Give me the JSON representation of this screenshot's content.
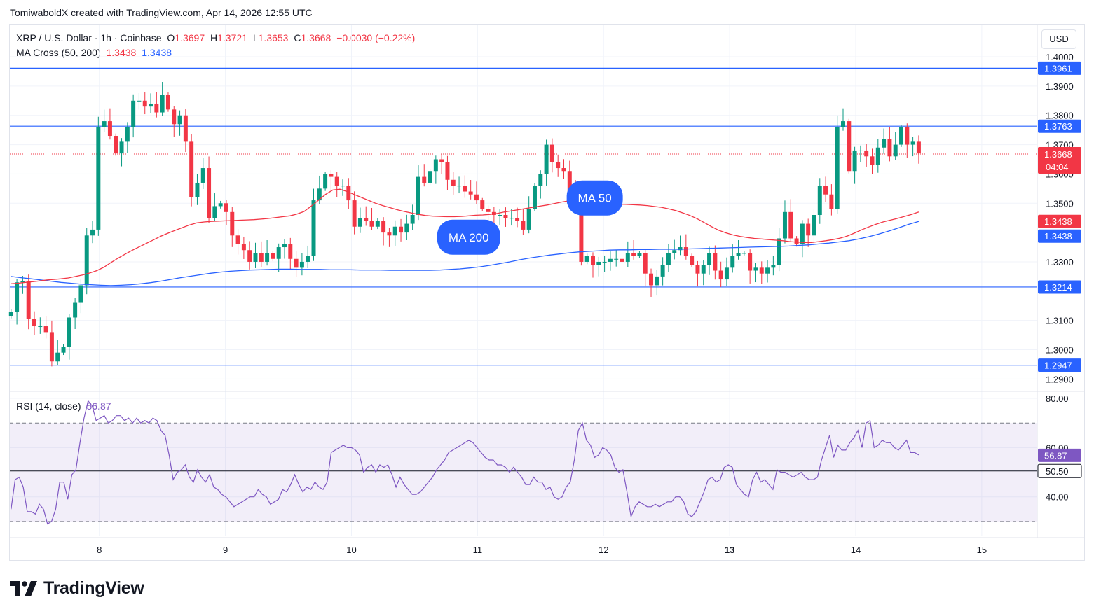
{
  "header": {
    "credit": "TomiwaboldX created with TradingView.com, Apr 14, 2026 12:55 UTC"
  },
  "legend": {
    "symbol": "XRP / U.S. Dollar · 1h · Coinbase",
    "o_label": "O",
    "o_value": "1.3697",
    "h_label": "H",
    "h_value": "1.3721",
    "l_label": "L",
    "l_value": "1.3653",
    "c_label": "C",
    "c_value": "1.3668",
    "change": "−0.0030 (−0.22%)",
    "ma_label": "MA Cross (50, 200)",
    "ma50_value": "1.3438",
    "ma200_value": "1.3438",
    "rsi_label": "RSI (14, close)",
    "rsi_value": "56.87"
  },
  "currency_button": "USD",
  "logo_text": "TradingView",
  "colors": {
    "bull": "#089981",
    "bear": "#f23645",
    "ma50": "#f23645",
    "ma200": "#2962ff",
    "hline": "#2962ff",
    "rsi": "#7e57c2",
    "rsi_band": "#7e57c2"
  },
  "chart_data": [
    {
      "type": "candlestick",
      "title": "XRP / U.S. Dollar · 1h · Coinbase",
      "ylim": [
        1.2865,
        1.4012
      ],
      "y_ticks": [
        "1.2900",
        "1.3000",
        "1.3100",
        "1.3300",
        "1.3500",
        "1.3600",
        "1.3700",
        "1.3800",
        "1.3900",
        "1.4000"
      ],
      "x_ticks": [
        {
          "label": "8",
          "day": 8
        },
        {
          "label": "9",
          "day": 9
        },
        {
          "label": "10",
          "day": 10
        },
        {
          "label": "11",
          "day": 11
        },
        {
          "label": "12",
          "day": 12
        },
        {
          "label": "13",
          "day": 13,
          "bold": true
        },
        {
          "label": "14",
          "day": 14
        },
        {
          "label": "15",
          "day": 15
        }
      ],
      "x_range_days": [
        7.29,
        15.44
      ],
      "first_candle_day": 7.3,
      "last_candle_day": 14.5,
      "closes": [
        1.313,
        1.323,
        1.3235,
        1.3105,
        1.308,
        1.308,
        1.306,
        1.296,
        1.299,
        1.301,
        1.311,
        1.316,
        1.322,
        1.339,
        1.341,
        1.376,
        1.378,
        1.373,
        1.367,
        1.371,
        1.376,
        1.385,
        1.385,
        1.383,
        1.384,
        1.381,
        1.387,
        1.382,
        1.377,
        1.38,
        1.371,
        1.352,
        1.357,
        1.362,
        1.345,
        1.349,
        1.35,
        1.347,
        1.339,
        1.336,
        1.334,
        1.33,
        1.333,
        1.33,
        1.333,
        1.331,
        1.335,
        1.336,
        1.331,
        1.328,
        1.33,
        1.332,
        1.351,
        1.355,
        1.36,
        1.359,
        1.356,
        1.356,
        1.351,
        1.342,
        1.345,
        1.344,
        1.342,
        1.344,
        1.34,
        1.339,
        1.342,
        1.34,
        1.343,
        1.346,
        1.359,
        1.357,
        1.361,
        1.365,
        1.364,
        1.358,
        1.356,
        1.356,
        1.354,
        1.353,
        1.351,
        1.348,
        1.347,
        1.346,
        1.346,
        1.345,
        1.345,
        1.344,
        1.341,
        1.348,
        1.356,
        1.36,
        1.37,
        1.364,
        1.362,
        1.361,
        1.354,
        1.352,
        1.33,
        1.332,
        1.329,
        1.33,
        1.33,
        1.331,
        1.331,
        1.33,
        1.333,
        1.332,
        1.333,
        1.326,
        1.322,
        1.325,
        1.329,
        1.333,
        1.334,
        1.335,
        1.332,
        1.329,
        1.326,
        1.329,
        1.333,
        1.327,
        1.324,
        1.328,
        1.332,
        1.333,
        1.333,
        1.327,
        1.328,
        1.326,
        1.328,
        1.329,
        1.338,
        1.347,
        1.338,
        1.336,
        1.343,
        1.339,
        1.346,
        1.356,
        1.353,
        1.348,
        1.376,
        1.378,
        1.361,
        1.368,
        1.368,
        1.366,
        1.363,
        1.369,
        1.372,
        1.366,
        1.37,
        1.376,
        1.37,
        1.371,
        1.367
      ],
      "ma50": [
        1.3225,
        1.3227,
        1.323,
        1.3232,
        1.3235,
        1.3238,
        1.324,
        1.3242,
        1.3245,
        1.325,
        1.3255,
        1.3262,
        1.327,
        1.3282,
        1.3298,
        1.3313,
        1.3327,
        1.334,
        1.3352,
        1.3364,
        1.3376,
        1.3388,
        1.3398,
        1.3408,
        1.3417,
        1.3426,
        1.3433,
        1.3436,
        1.3438,
        1.3439,
        1.344,
        1.3441,
        1.3442,
        1.3443,
        1.3444,
        1.3446,
        1.3448,
        1.3451,
        1.3454,
        1.3457,
        1.3463,
        1.3472,
        1.349,
        1.351,
        1.353,
        1.3545,
        1.3548,
        1.354,
        1.353,
        1.352,
        1.351,
        1.35,
        1.3492,
        1.3485,
        1.3478,
        1.3472,
        1.3467,
        1.3462,
        1.3458,
        1.3456,
        1.3455,
        1.3454,
        1.3454,
        1.3455,
        1.3457,
        1.3459,
        1.346,
        1.3462,
        1.3465,
        1.347,
        1.3474,
        1.3478,
        1.3482,
        1.3486,
        1.349,
        1.3494,
        1.3499,
        1.3504,
        1.3508,
        1.351,
        1.3511,
        1.351,
        1.3508,
        1.3504,
        1.35,
        1.3497,
        1.3496,
        1.3495,
        1.3494,
        1.3492,
        1.3489,
        1.3486,
        1.3481,
        1.3475,
        1.3467,
        1.3458,
        1.3447,
        1.3434,
        1.342,
        1.3408,
        1.3399,
        1.3392,
        1.3387,
        1.3383,
        1.338,
        1.3378,
        1.3376,
        1.3374,
        1.3372,
        1.3369,
        1.3367,
        1.3366,
        1.3366,
        1.3369,
        1.3372,
        1.3376,
        1.3381,
        1.3388,
        1.3398,
        1.3409,
        1.3419,
        1.3428,
        1.3436,
        1.3442,
        1.3448,
        1.3455,
        1.3462,
        1.347
      ],
      "ma200": [
        1.325,
        1.3246,
        1.3242,
        1.3238,
        1.3234,
        1.323,
        1.3227,
        1.3224,
        1.3222,
        1.322,
        1.3219,
        1.322,
        1.3222,
        1.3225,
        1.3229,
        1.3234,
        1.324,
        1.3246,
        1.3251,
        1.3256,
        1.3261,
        1.3265,
        1.3268,
        1.327,
        1.3272,
        1.3273,
        1.3274,
        1.3275,
        1.3275,
        1.3274,
        1.3274,
        1.3274,
        1.3273,
        1.3273,
        1.3273,
        1.3272,
        1.3272,
        1.3272,
        1.3271,
        1.3271,
        1.3271,
        1.3271,
        1.3271,
        1.3272,
        1.3274,
        1.3276,
        1.3279,
        1.3283,
        1.3288,
        1.3294,
        1.33,
        1.3307,
        1.3313,
        1.3318,
        1.3323,
        1.3327,
        1.3331,
        1.3334,
        1.3336,
        1.3338,
        1.334,
        1.3341,
        1.3341,
        1.3342,
        1.3342,
        1.3343,
        1.3343,
        1.3343,
        1.3344,
        1.3345,
        1.3346,
        1.3347,
        1.3348,
        1.3349,
        1.335,
        1.3351,
        1.3352,
        1.3353,
        1.3354,
        1.3356,
        1.3358,
        1.3361,
        1.3364,
        1.3368,
        1.3372,
        1.3378,
        1.3386,
        1.3395,
        1.3405,
        1.3416,
        1.3428,
        1.3438
      ],
      "levels": [
        {
          "value": 1.3961,
          "label": "1.3961"
        },
        {
          "value": 1.3763,
          "label": "1.3763"
        },
        {
          "value": 1.3214,
          "label": "1.3214"
        },
        {
          "value": 1.2947,
          "label": "1.2947"
        }
      ],
      "last_price": {
        "value": 1.3668,
        "label": "1.3668",
        "countdown": "04:04"
      },
      "ma_tags": [
        {
          "value": 1.3438,
          "label": "1.3438",
          "series": "ma50"
        },
        {
          "value": 1.3438,
          "label": "1.3438",
          "series": "ma200"
        }
      ],
      "annotations": [
        {
          "text": "MA 50",
          "day": 11.93,
          "price": 1.3518
        },
        {
          "text": "MA 200",
          "day": 10.93,
          "price": 1.3384
        }
      ]
    },
    {
      "type": "line",
      "title": "RSI (14, close)",
      "ylim": [
        24,
        82
      ],
      "y_ticks": [
        "80.00",
        "60.00",
        "40.00"
      ],
      "bands": {
        "upper": 70,
        "lower": 30,
        "middle": 50.5
      },
      "middle_label": "50.50",
      "last_label": "56.87",
      "values": [
        35,
        47,
        48,
        44,
        34,
        34,
        33,
        37,
        35,
        29,
        30,
        35,
        46,
        46,
        39,
        49,
        51,
        62,
        72,
        79,
        77,
        71,
        72,
        73,
        70,
        71,
        73,
        73,
        71,
        72,
        70,
        72,
        70,
        71,
        70,
        72,
        71,
        67,
        65,
        57,
        47,
        50,
        51,
        53,
        48,
        46,
        51,
        48,
        46,
        49,
        44,
        43,
        41,
        40,
        38,
        36,
        37,
        38,
        39,
        40,
        40,
        43,
        41,
        40,
        37,
        38,
        39,
        43,
        42,
        45,
        49,
        45,
        42,
        44,
        43,
        46,
        44,
        43,
        46,
        58,
        59,
        60,
        61,
        60,
        60,
        59,
        57,
        50,
        52,
        53,
        50,
        53,
        52,
        53,
        49,
        44,
        48,
        45,
        43,
        41,
        41,
        42,
        44,
        46,
        48,
        51,
        53,
        55,
        58,
        59,
        60,
        61,
        62,
        63,
        62,
        60,
        58,
        56,
        55,
        55,
        53,
        53,
        52,
        50,
        52,
        50,
        48,
        45,
        45,
        48,
        46,
        46,
        43,
        44,
        40,
        39,
        40,
        44,
        46,
        55,
        67,
        70,
        63,
        61,
        56,
        57,
        60,
        59,
        57,
        52,
        50,
        51,
        42,
        32,
        36,
        38,
        37,
        36,
        36,
        37,
        36,
        37,
        38,
        38,
        40,
        40,
        38,
        33,
        32,
        34,
        38,
        42,
        47,
        48,
        46,
        47,
        52,
        53,
        52,
        45,
        43,
        41,
        40,
        47,
        50,
        46,
        47,
        45,
        43,
        51,
        50,
        50,
        49,
        48,
        49,
        50,
        48,
        47,
        47,
        48,
        55,
        60,
        65,
        56,
        61,
        59,
        59,
        62,
        64,
        67,
        60,
        70,
        71,
        60,
        61,
        63,
        62,
        62,
        60,
        59,
        61,
        63,
        58,
        58,
        57
      ],
      "values_count_note": ""
    }
  ]
}
